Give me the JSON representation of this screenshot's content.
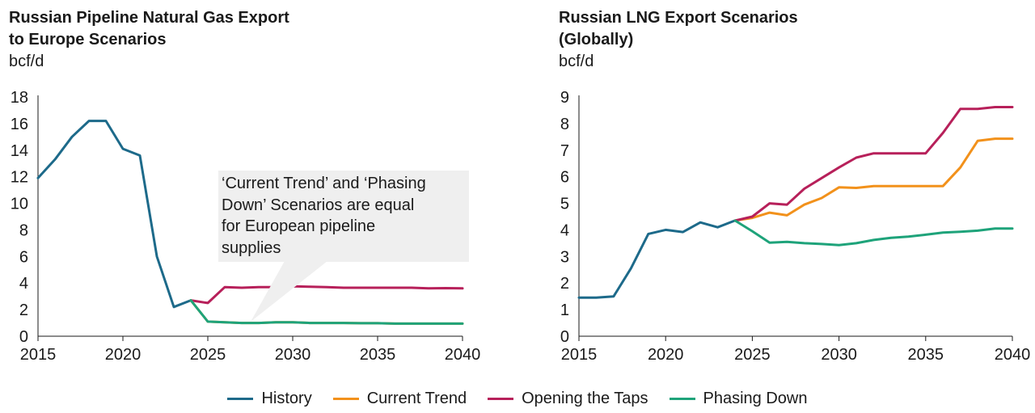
{
  "left_chart": {
    "title_line1": "Russian Pipeline Natural Gas Export",
    "title_line2": "to Europe Scenarios",
    "unit": "bcf/d"
  },
  "right_chart": {
    "title_line1": "Russian LNG Export Scenarios",
    "title_line2": "(Globally)",
    "unit": "bcf/d"
  },
  "callout": {
    "text": "‘Current Trend’ and ‘Phasing\nDown’ Scenarios are equal\nfor European pipeline\nsupplies"
  },
  "legend": [
    {
      "label": "History",
      "color": "#1d6a8a"
    },
    {
      "label": "Current Trend",
      "color": "#f2911b"
    },
    {
      "label": "Opening the Taps",
      "color": "#b7205a"
    },
    {
      "label": "Phasing Down",
      "color": "#1ea37a"
    }
  ],
  "chart_data": [
    {
      "type": "line",
      "title": "Russian Pipeline Natural Gas Export to Europe Scenarios",
      "ylabel": "bcf/d",
      "xlim": [
        2015,
        2040
      ],
      "ylim": [
        0,
        18
      ],
      "x_ticks": [
        2015,
        2020,
        2025,
        2030,
        2035,
        2040
      ],
      "y_ticks": [
        0,
        2,
        4,
        6,
        8,
        10,
        12,
        14,
        16,
        18
      ],
      "series": [
        {
          "name": "History",
          "color": "#1d6a8a",
          "x": [
            2015,
            2016,
            2017,
            2018,
            2019,
            2020,
            2021,
            2022,
            2023,
            2024
          ],
          "y": [
            11.9,
            13.3,
            15.0,
            16.2,
            16.2,
            14.1,
            13.6,
            6.0,
            2.2,
            2.7
          ]
        },
        {
          "name": "Opening the Taps",
          "color": "#b7205a",
          "x": [
            2024,
            2025,
            2026,
            2027,
            2028,
            2029,
            2030,
            2031,
            2032,
            2033,
            2034,
            2035,
            2036,
            2037,
            2038,
            2039,
            2040
          ],
          "y": [
            2.7,
            2.5,
            3.7,
            3.65,
            3.7,
            3.7,
            3.75,
            3.72,
            3.7,
            3.65,
            3.65,
            3.65,
            3.65,
            3.65,
            3.6,
            3.62,
            3.6
          ]
        },
        {
          "name": "Current Trend",
          "color": "#f2911b",
          "x": [
            2024,
            2025,
            2026,
            2027,
            2028,
            2029,
            2030,
            2031,
            2032,
            2033,
            2034,
            2035,
            2036,
            2037,
            2038,
            2039,
            2040
          ],
          "y": [
            2.7,
            1.1,
            1.05,
            1.0,
            1.0,
            1.05,
            1.05,
            1.0,
            1.0,
            1.0,
            0.98,
            0.98,
            0.95,
            0.95,
            0.95,
            0.95,
            0.95
          ]
        },
        {
          "name": "Phasing Down",
          "color": "#1ea37a",
          "x": [
            2024,
            2025,
            2026,
            2027,
            2028,
            2029,
            2030,
            2031,
            2032,
            2033,
            2034,
            2035,
            2036,
            2037,
            2038,
            2039,
            2040
          ],
          "y": [
            2.7,
            1.1,
            1.05,
            1.0,
            1.0,
            1.05,
            1.05,
            1.0,
            1.0,
            1.0,
            0.98,
            0.98,
            0.95,
            0.95,
            0.95,
            0.95,
            0.95
          ]
        }
      ]
    },
    {
      "type": "line",
      "title": "Russian LNG Export Scenarios (Globally)",
      "ylabel": "bcf/d",
      "xlim": [
        2015,
        2040
      ],
      "ylim": [
        0,
        9
      ],
      "x_ticks": [
        2015,
        2020,
        2025,
        2030,
        2035,
        2040
      ],
      "y_ticks": [
        0,
        1,
        2,
        3,
        4,
        5,
        6,
        7,
        8,
        9
      ],
      "series": [
        {
          "name": "History",
          "color": "#1d6a8a",
          "x": [
            2015,
            2016,
            2017,
            2018,
            2019,
            2020,
            2021,
            2022,
            2023,
            2024
          ],
          "y": [
            1.45,
            1.45,
            1.5,
            2.55,
            3.85,
            4.0,
            3.92,
            4.28,
            4.1,
            4.35
          ]
        },
        {
          "name": "Current Trend",
          "color": "#f2911b",
          "x": [
            2024,
            2025,
            2026,
            2027,
            2028,
            2029,
            2030,
            2031,
            2032,
            2033,
            2034,
            2035,
            2036,
            2037,
            2038,
            2039,
            2040
          ],
          "y": [
            4.35,
            4.45,
            4.65,
            4.55,
            4.95,
            5.2,
            5.6,
            5.58,
            5.65,
            5.65,
            5.65,
            5.65,
            5.65,
            6.35,
            7.35,
            7.43,
            7.43
          ]
        },
        {
          "name": "Opening the Taps",
          "color": "#b7205a",
          "x": [
            2024,
            2025,
            2026,
            2027,
            2028,
            2029,
            2030,
            2031,
            2032,
            2033,
            2034,
            2035,
            2036,
            2037,
            2038,
            2039,
            2040
          ],
          "y": [
            4.35,
            4.5,
            5.0,
            4.95,
            5.55,
            5.95,
            6.35,
            6.72,
            6.88,
            6.88,
            6.88,
            6.88,
            7.65,
            8.55,
            8.55,
            8.62,
            8.62
          ]
        },
        {
          "name": "Phasing Down",
          "color": "#1ea37a",
          "x": [
            2024,
            2025,
            2026,
            2027,
            2028,
            2029,
            2030,
            2031,
            2032,
            2033,
            2034,
            2035,
            2036,
            2037,
            2038,
            2039,
            2040
          ],
          "y": [
            4.35,
            3.95,
            3.52,
            3.55,
            3.5,
            3.47,
            3.43,
            3.5,
            3.62,
            3.7,
            3.75,
            3.82,
            3.9,
            3.93,
            3.97,
            4.05,
            4.05
          ]
        }
      ]
    }
  ]
}
